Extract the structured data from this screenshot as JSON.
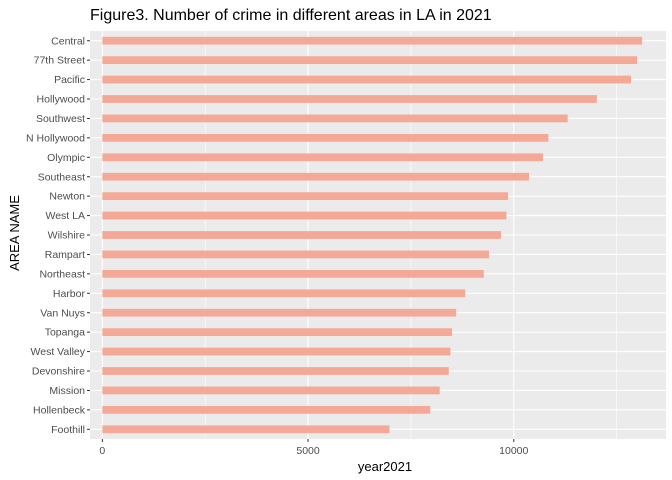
{
  "chart_data": {
    "type": "bar",
    "orientation": "horizontal",
    "title": "Figure3. Number of crime in different areas in LA in 2021",
    "xlabel": "year2021",
    "ylabel": "AREA NAME",
    "categories": [
      "Central",
      "77th Street",
      "Pacific",
      "Hollywood",
      "Southwest",
      "N Hollywood",
      "Olympic",
      "Southeast",
      "Newton",
      "West LA",
      "Wilshire",
      "Rampart",
      "Northeast",
      "Harbor",
      "Van Nuys",
      "Topanga",
      "West Valley",
      "Devonshire",
      "Mission",
      "Hollenbeck",
      "Foothill"
    ],
    "values": [
      13120,
      13000,
      12850,
      12020,
      11310,
      10840,
      10710,
      10370,
      9860,
      9820,
      9690,
      9400,
      9270,
      8820,
      8600,
      8500,
      8460,
      8420,
      8200,
      7970,
      6980
    ],
    "xlim": [
      -300,
      13700
    ],
    "x_ticks": [
      0,
      5000,
      10000
    ],
    "x_tick_labels": [
      "0",
      "5000",
      "10000"
    ],
    "grid": true,
    "bar_color": "#F4A996",
    "panel_background": "#EBEBEB",
    "grid_color": "#FFFFFF"
  }
}
